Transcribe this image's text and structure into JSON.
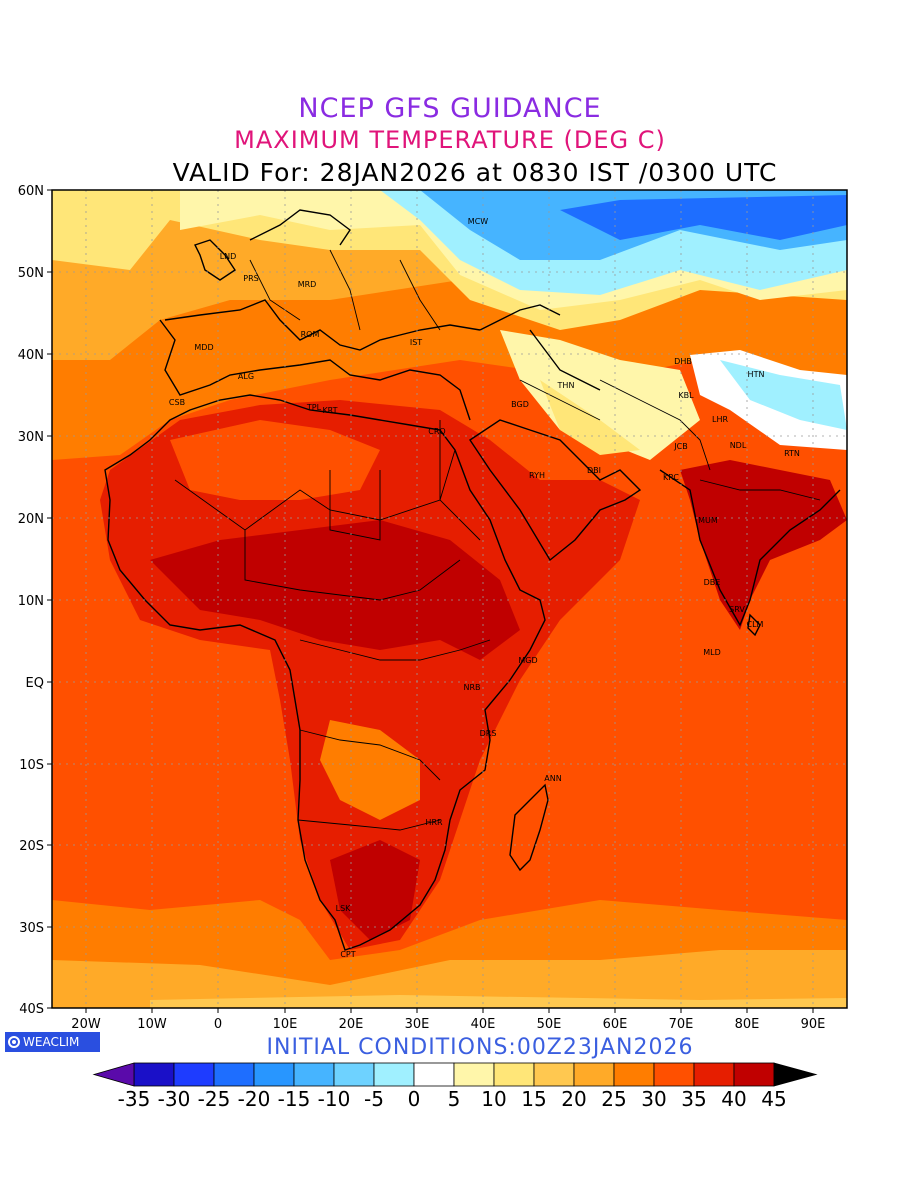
{
  "title": {
    "line1": "NCEP GFS GUIDANCE",
    "line2": "MAXIMUM TEMPERATURE (DEG C)",
    "line3": "VALID For: 28JAN2026 at 0830 IST /0300 UTC"
  },
  "initial_conditions": "INITIAL CONDITIONS:00Z23JAN2026",
  "logo_text": "WEACLIM",
  "axes": {
    "lat_labels": [
      "60N",
      "50N",
      "40N",
      "30N",
      "20N",
      "10N",
      "EQ",
      "10S",
      "20S",
      "30S",
      "40S"
    ],
    "lon_labels": [
      "20W",
      "10W",
      "0",
      "10E",
      "20E",
      "30E",
      "40E",
      "50E",
      "60E",
      "70E",
      "80E",
      "90E"
    ]
  },
  "cities": [
    "MCW",
    "LND",
    "PRS",
    "MRD",
    "MDD",
    "ROM",
    "IST",
    "ALG",
    "CSB",
    "TPL",
    "KRT",
    "CRO",
    "BGD",
    "THN",
    "DHB",
    "HTN",
    "KBL",
    "LHR",
    "JCB",
    "NDL",
    "RTN",
    "KRC",
    "RYH",
    "DBI",
    "MUM",
    "DBE",
    "SRV",
    "CLM",
    "MLD",
    "MGD",
    "NRB",
    "DRS",
    "ANN",
    "HRR",
    "LSK",
    "CPT"
  ],
  "colorbar": {
    "labels": [
      "-35",
      "-30",
      "-25",
      "-20",
      "-15",
      "-10",
      "-5",
      "0",
      "5",
      "10",
      "15",
      "20",
      "25",
      "30",
      "35",
      "40",
      "45"
    ],
    "colors": [
      "#1a10c8",
      "#1e3cff",
      "#1e6eff",
      "#2896ff",
      "#46b4ff",
      "#6ed2ff",
      "#a0f0ff",
      "#ffffff",
      "#fff6aa",
      "#ffe678",
      "#ffc850",
      "#ffaa28",
      "#ff7d00",
      "#ff5000",
      "#e61e00",
      "#c00000",
      "#960000"
    ],
    "low_color": "#5a0aaa",
    "high_color": "#000000"
  },
  "palette": {
    "cold_deep": "#1e6eff",
    "cold": "#46b4ff",
    "cool": "#a0f0ff",
    "mild": "#fff6aa",
    "warm": "#ffe678",
    "t15": "#ffc850",
    "t20": "#ffaa28",
    "t25": "#ff7d00",
    "t30": "#ff5000",
    "t35": "#e61e00",
    "t40": "#c00000"
  }
}
